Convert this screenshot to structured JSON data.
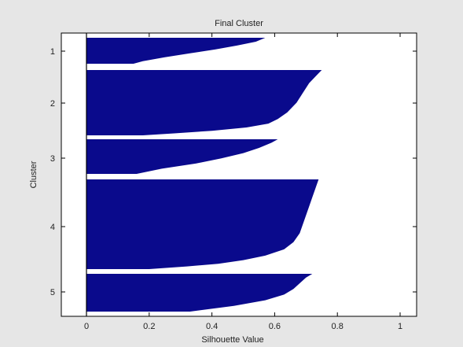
{
  "chart_data": {
    "type": "bar",
    "title": "Final Cluster",
    "xlabel": "Silhouette Value",
    "ylabel": "Cluster",
    "xlim": [
      -0.05,
      1.1
    ],
    "xticks": [
      0,
      0.2,
      0.4,
      0.6,
      0.8,
      1
    ],
    "xtick_labels": [
      "0",
      "0.2",
      "0.4",
      "0.6",
      "0.8",
      "1"
    ],
    "yticks": [
      1,
      2,
      3,
      4,
      5
    ],
    "grid": false,
    "bar_color": "#0a0a8c",
    "background_color": "#ffffff",
    "figure_color": "#e6e6e6",
    "clusters": [
      {
        "label": "1",
        "silhouette_profile": [
          [
            0.0,
            0.57
          ],
          [
            0.15,
            0.54
          ],
          [
            0.3,
            0.48
          ],
          [
            0.45,
            0.41
          ],
          [
            0.6,
            0.33
          ],
          [
            0.75,
            0.25
          ],
          [
            0.9,
            0.18
          ],
          [
            1.0,
            0.15
          ]
        ]
      },
      {
        "label": "2",
        "silhouette_profile": [
          [
            0.0,
            0.75
          ],
          [
            0.1,
            0.73
          ],
          [
            0.2,
            0.71
          ],
          [
            0.35,
            0.69
          ],
          [
            0.5,
            0.67
          ],
          [
            0.65,
            0.64
          ],
          [
            0.75,
            0.61
          ],
          [
            0.82,
            0.58
          ],
          [
            0.88,
            0.51
          ],
          [
            0.93,
            0.4
          ],
          [
            0.97,
            0.28
          ],
          [
            1.0,
            0.18
          ]
        ]
      },
      {
        "label": "3",
        "silhouette_profile": [
          [
            0.0,
            0.61
          ],
          [
            0.1,
            0.59
          ],
          [
            0.25,
            0.55
          ],
          [
            0.4,
            0.5
          ],
          [
            0.55,
            0.43
          ],
          [
            0.7,
            0.35
          ],
          [
            0.85,
            0.24
          ],
          [
            1.0,
            0.16
          ]
        ]
      },
      {
        "label": "4",
        "silhouette_profile": [
          [
            0.0,
            0.74
          ],
          [
            0.1,
            0.73
          ],
          [
            0.2,
            0.72
          ],
          [
            0.3,
            0.71
          ],
          [
            0.4,
            0.7
          ],
          [
            0.5,
            0.69
          ],
          [
            0.6,
            0.68
          ],
          [
            0.7,
            0.66
          ],
          [
            0.78,
            0.63
          ],
          [
            0.85,
            0.57
          ],
          [
            0.9,
            0.5
          ],
          [
            0.94,
            0.42
          ],
          [
            0.97,
            0.32
          ],
          [
            1.0,
            0.2
          ]
        ]
      },
      {
        "label": "5",
        "silhouette_profile": [
          [
            0.0,
            0.72
          ],
          [
            0.1,
            0.7
          ],
          [
            0.25,
            0.68
          ],
          [
            0.4,
            0.66
          ],
          [
            0.55,
            0.63
          ],
          [
            0.7,
            0.57
          ],
          [
            0.85,
            0.47
          ],
          [
            1.0,
            0.33
          ]
        ]
      }
    ]
  }
}
